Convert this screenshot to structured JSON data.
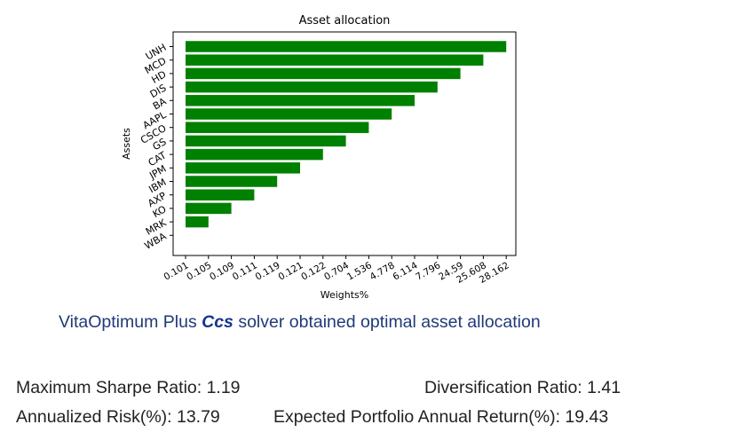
{
  "chart_data": {
    "type": "bar",
    "orientation": "horizontal",
    "title": "Asset allocation",
    "xlabel": "Weights%",
    "ylabel": "Assets",
    "categories": [
      "UNH",
      "MCD",
      "HD",
      "DIS",
      "BA",
      "AAPL",
      "CSCO",
      "GS",
      "CAT",
      "JPM",
      "IBM",
      "AXP",
      "KO",
      "MRK",
      "WBA"
    ],
    "values": [
      28.162,
      25.608,
      24.59,
      7.796,
      6.114,
      4.778,
      1.536,
      0.704,
      0.122,
      0.121,
      0.119,
      0.111,
      0.109,
      0.105,
      0.101
    ],
    "x_tick_labels": [
      "0.101",
      "0.105",
      "0.109",
      "0.111",
      "0.119",
      "0.121",
      "0.122",
      "0.704",
      "1.536",
      "4.778",
      "6.114",
      "7.796",
      "24.59",
      "25.608",
      "28.162"
    ],
    "bar_color": "#008000",
    "grid": false,
    "legend": "none"
  },
  "caption": {
    "prefix": "VitaOptimum Plus",
    "solver": "Ccs",
    "suffix": "solver obtained optimal asset allocation"
  },
  "stats": {
    "sharpe": "Maximum Sharpe Ratio: 1.19",
    "diversification": "Diversification Ratio: 1.41",
    "risk": "Annualized Risk(%): 13.79",
    "return": "Expected Portfolio Annual Return(%): 19.43"
  }
}
